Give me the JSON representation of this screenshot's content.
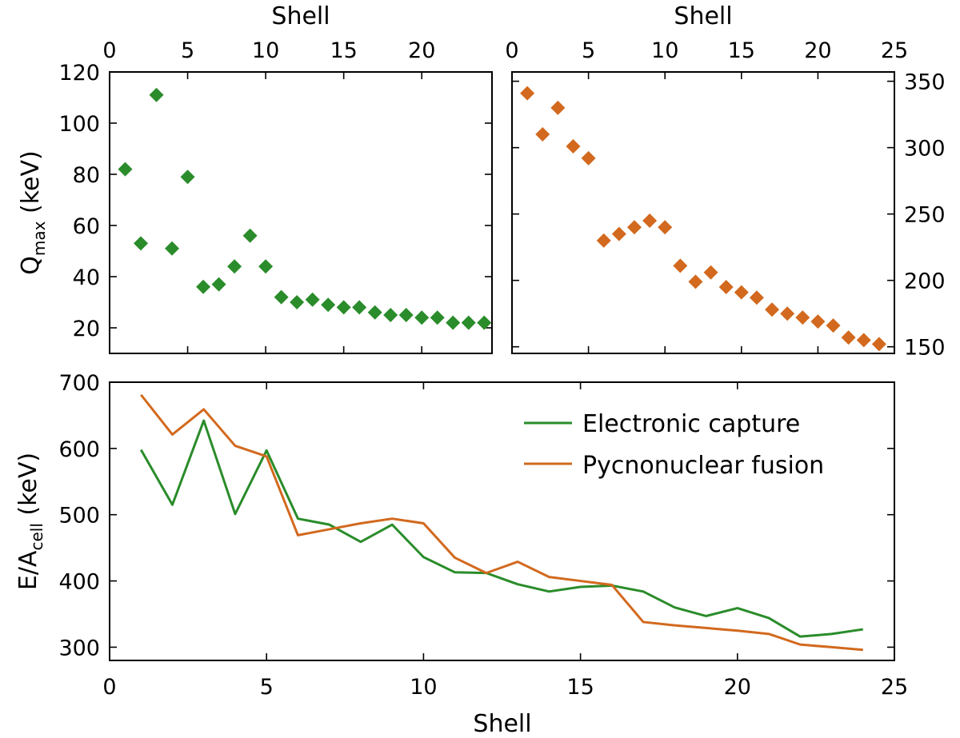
{
  "chart_data": [
    {
      "id": "top-left",
      "type": "scatter",
      "marker": "diamond",
      "color": "#2a8c2a",
      "xlabel_top": "Shell",
      "ylabel_main": "Q",
      "ylabel_sub": "max",
      "ylabel_unit": " (keV)",
      "xlim": [
        0,
        24.5
      ],
      "ylim": [
        10,
        120
      ],
      "x_top_ticks": [
        0,
        5,
        10,
        15,
        20
      ],
      "y_ticks": [
        20,
        40,
        60,
        80,
        100,
        120
      ],
      "x": [
        1,
        2,
        3,
        4,
        5,
        6,
        7,
        8,
        9,
        10,
        11,
        12,
        13,
        14,
        15,
        16,
        17,
        18,
        19,
        20,
        21,
        22,
        23,
        24
      ],
      "values": [
        82,
        53,
        111,
        51,
        79,
        36,
        37,
        44,
        56,
        44,
        32,
        30,
        31,
        29,
        28,
        28,
        26,
        25,
        25,
        24,
        24,
        22,
        22,
        22
      ]
    },
    {
      "id": "top-right",
      "type": "scatter",
      "marker": "diamond",
      "color": "#d2691e",
      "xlabel_top": "Shell",
      "xlim": [
        0,
        25
      ],
      "ylim": [
        145,
        357
      ],
      "x_top_ticks": [
        0,
        5,
        10,
        15,
        20,
        25
      ],
      "y_ticks": [
        150,
        200,
        250,
        300,
        350
      ],
      "x": [
        1,
        2,
        3,
        4,
        5,
        6,
        7,
        8,
        9,
        10,
        11,
        12,
        13,
        14,
        15,
        16,
        17,
        18,
        19,
        20,
        21,
        22,
        23,
        24
      ],
      "values": [
        341,
        310,
        330,
        301,
        292,
        230,
        235,
        240,
        245,
        240,
        211,
        199,
        206,
        195,
        191,
        187,
        178,
        175,
        172,
        169,
        166,
        157,
        155,
        152
      ]
    },
    {
      "id": "bottom",
      "type": "line",
      "xlabel": "Shell",
      "ylabel_main": "E/A",
      "ylabel_sub": "cell",
      "ylabel_unit": " (keV)",
      "xlim": [
        0,
        25
      ],
      "ylim": [
        280,
        700
      ],
      "x_ticks": [
        0,
        5,
        10,
        15,
        20,
        25
      ],
      "y_ticks": [
        300,
        400,
        500,
        600,
        700
      ],
      "x": [
        1,
        2,
        3,
        4,
        5,
        6,
        7,
        8,
        9,
        10,
        11,
        12,
        13,
        14,
        15,
        16,
        17,
        18,
        19,
        20,
        21,
        22,
        23,
        24
      ],
      "legend_position": "top-right",
      "series": [
        {
          "name": "Electronic capture",
          "color": "#2a8c2a",
          "values": [
            598,
            515,
            642,
            501,
            597,
            494,
            485,
            459,
            485,
            436,
            413,
            412,
            395,
            384,
            391,
            393,
            384,
            360,
            347,
            359,
            344,
            316,
            320,
            327
          ]
        },
        {
          "name": "Pycnonuclear fusion",
          "color": "#d2691e",
          "values": [
            681,
            621,
            659,
            604,
            588,
            469,
            478,
            487,
            494,
            487,
            435,
            412,
            429,
            406,
            400,
            394,
            338,
            333,
            329,
            325,
            320,
            304,
            300,
            296
          ]
        }
      ]
    }
  ]
}
